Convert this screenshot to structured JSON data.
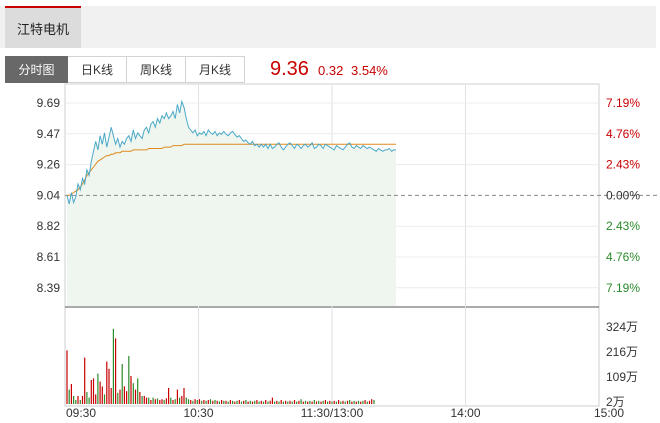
{
  "header": {
    "stock_name": "江特电机"
  },
  "tabs": [
    {
      "label": "分时图",
      "active": true
    },
    {
      "label": "日K线",
      "active": false
    },
    {
      "label": "周K线",
      "active": false
    },
    {
      "label": "月K线",
      "active": false
    }
  ],
  "quote": {
    "price": "9.36",
    "change": "0.32",
    "change_pct": "3.54%"
  },
  "colors": {
    "up": "#c80000",
    "down": "#2b8a2b",
    "price_line": "#4ba8c8",
    "avg_line": "#e08a1e",
    "fill": "#eef6ef"
  },
  "chart_data": {
    "type": "line",
    "prev_close": 9.04,
    "y_ticks": [
      "9.69",
      "9.47",
      "9.26",
      "9.04",
      "8.82",
      "8.61",
      "8.39"
    ],
    "pct_ticks": [
      "7.19%",
      "4.76%",
      "2.43%",
      "0.00%",
      "2.43%",
      "4.76%",
      "7.19%"
    ],
    "volume_ticks": [
      "324万",
      "216万",
      "109万",
      "2万"
    ],
    "x_ticks": [
      "09:30",
      "10:30",
      "11:30/13:00",
      "14:00",
      "15:00"
    ],
    "series": [
      {
        "values": [
          9.04,
          8.98,
          9.06,
          8.99,
          9.03,
          9.12,
          9.08,
          9.16,
          9.12,
          9.22,
          9.18,
          9.28,
          9.35,
          9.42,
          9.36,
          9.46,
          9.4,
          9.48,
          9.38,
          9.45,
          9.52,
          9.46,
          9.4,
          9.44,
          9.38,
          9.42,
          9.4,
          9.44,
          9.46,
          9.42,
          9.5,
          9.44,
          9.48,
          9.46,
          9.44,
          9.5,
          9.52,
          9.48,
          9.54,
          9.56,
          9.52,
          9.58,
          9.55,
          9.6,
          9.58,
          9.62,
          9.58,
          9.6,
          9.63,
          9.58,
          9.68,
          9.62,
          9.7,
          9.66,
          9.58,
          9.52,
          9.5,
          9.48,
          9.5,
          9.46,
          9.48,
          9.47,
          9.49,
          9.46,
          9.5,
          9.48,
          9.47,
          9.49,
          9.46,
          9.48,
          9.47,
          9.49,
          9.47,
          9.46,
          9.48,
          9.49,
          9.47,
          9.45,
          9.46,
          9.44,
          9.42,
          9.43,
          9.41,
          9.4,
          9.42,
          9.39,
          9.4,
          9.38,
          9.4,
          9.38,
          9.4,
          9.37,
          9.4,
          9.37,
          9.38,
          9.4,
          9.41,
          9.38,
          9.36,
          9.38,
          9.4,
          9.41,
          9.39,
          9.37,
          9.4,
          9.39,
          9.37,
          9.39,
          9.4,
          9.38,
          9.39,
          9.41,
          9.37,
          9.38,
          9.4,
          9.39,
          9.37,
          9.4,
          9.39,
          9.38,
          9.37,
          9.36,
          9.39,
          9.38,
          9.37,
          9.36,
          9.38,
          9.4,
          9.41,
          9.38,
          9.37,
          9.39,
          9.38,
          9.37,
          9.39,
          9.38,
          9.37,
          9.38,
          9.37,
          9.36,
          9.35,
          9.37,
          9.36,
          9.35,
          9.36,
          9.36,
          9.37,
          9.35,
          9.36,
          9.36
        ]
      },
      {
        "values": [
          9.04,
          9.04,
          9.05,
          9.06,
          9.07,
          9.08,
          9.1,
          9.12,
          9.15,
          9.18,
          9.2,
          9.22,
          9.24,
          9.26,
          9.28,
          9.29,
          9.3,
          9.31,
          9.32,
          9.32,
          9.33,
          9.33,
          9.34,
          9.34,
          9.34,
          9.35,
          9.35,
          9.35,
          9.35,
          9.35,
          9.36,
          9.36,
          9.36,
          9.36,
          9.36,
          9.36,
          9.36,
          9.37,
          9.37,
          9.37,
          9.37,
          9.37,
          9.37,
          9.37,
          9.38,
          9.38,
          9.38,
          9.38,
          9.39,
          9.39,
          9.39,
          9.39,
          9.39,
          9.4,
          9.4,
          9.4,
          9.4,
          9.4,
          9.4,
          9.4,
          9.4,
          9.4,
          9.4,
          9.4,
          9.4,
          9.4,
          9.4,
          9.4,
          9.4,
          9.4,
          9.4,
          9.4,
          9.4,
          9.4,
          9.4,
          9.4,
          9.4,
          9.4,
          9.4,
          9.4,
          9.4,
          9.4,
          9.4,
          9.4,
          9.4,
          9.4,
          9.4,
          9.4,
          9.4,
          9.4,
          9.4,
          9.4,
          9.4,
          9.4,
          9.4,
          9.4,
          9.4,
          9.4,
          9.4,
          9.4,
          9.4,
          9.4,
          9.4,
          9.4,
          9.4,
          9.4,
          9.4,
          9.4,
          9.4,
          9.4,
          9.4,
          9.4,
          9.4,
          9.4,
          9.4,
          9.4,
          9.4,
          9.4,
          9.4,
          9.4,
          9.4,
          9.4,
          9.4,
          9.4,
          9.4,
          9.4,
          9.4,
          9.4,
          9.4,
          9.4,
          9.4,
          9.4,
          9.4,
          9.4,
          9.4,
          9.4,
          9.4,
          9.4,
          9.4,
          9.4,
          9.4,
          9.4,
          9.4,
          9.4,
          9.4,
          9.4,
          9.4,
          9.4,
          9.4,
          9.4
        ]
      }
    ],
    "volume": [
      {
        "v": 0.67,
        "up": true
      },
      {
        "v": 0.18,
        "up": false
      },
      {
        "v": 0.25,
        "up": true
      },
      {
        "v": 0.1,
        "up": false
      },
      {
        "v": 0.05,
        "up": false
      },
      {
        "v": 0.1,
        "up": true
      },
      {
        "v": 0.05,
        "up": false
      },
      {
        "v": 0.1,
        "up": true
      },
      {
        "v": 0.58,
        "up": true
      },
      {
        "v": 0.15,
        "up": false
      },
      {
        "v": 0.08,
        "up": false
      },
      {
        "v": 0.3,
        "up": true
      },
      {
        "v": 0.32,
        "up": true
      },
      {
        "v": 0.12,
        "up": true
      },
      {
        "v": 0.38,
        "up": false
      },
      {
        "v": 0.28,
        "up": true
      },
      {
        "v": 0.22,
        "up": true
      },
      {
        "v": 0.12,
        "up": false
      },
      {
        "v": 0.53,
        "up": true
      },
      {
        "v": 0.44,
        "up": true
      },
      {
        "v": 0.2,
        "up": true
      },
      {
        "v": 0.94,
        "up": false
      },
      {
        "v": 0.82,
        "up": true
      },
      {
        "v": 0.14,
        "up": false
      },
      {
        "v": 0.18,
        "up": true
      },
      {
        "v": 0.5,
        "up": false
      },
      {
        "v": 0.22,
        "up": true
      },
      {
        "v": 0.16,
        "up": true
      },
      {
        "v": 0.6,
        "up": false
      },
      {
        "v": 0.35,
        "up": true
      },
      {
        "v": 0.26,
        "up": false
      },
      {
        "v": 0.18,
        "up": true
      },
      {
        "v": 0.32,
        "up": false
      },
      {
        "v": 0.15,
        "up": true
      },
      {
        "v": 0.1,
        "up": false
      },
      {
        "v": 0.1,
        "up": true
      },
      {
        "v": 0.08,
        "up": true
      },
      {
        "v": 0.08,
        "up": false
      },
      {
        "v": 0.05,
        "up": true
      },
      {
        "v": 0.08,
        "up": false
      },
      {
        "v": 0.06,
        "up": true
      },
      {
        "v": 0.07,
        "up": false
      },
      {
        "v": 0.05,
        "up": true
      },
      {
        "v": 0.06,
        "up": true
      },
      {
        "v": 0.05,
        "up": false
      },
      {
        "v": 0.07,
        "up": true
      },
      {
        "v": 0.2,
        "up": true
      },
      {
        "v": 0.08,
        "up": false
      },
      {
        "v": 0.05,
        "up": true
      },
      {
        "v": 0.06,
        "up": false
      },
      {
        "v": 0.18,
        "up": true
      },
      {
        "v": 0.08,
        "up": false
      },
      {
        "v": 0.1,
        "up": true
      },
      {
        "v": 0.2,
        "up": true
      },
      {
        "v": 0.08,
        "up": false
      },
      {
        "v": 0.06,
        "up": false
      },
      {
        "v": 0.05,
        "up": true
      },
      {
        "v": 0.04,
        "up": false
      },
      {
        "v": 0.06,
        "up": true
      },
      {
        "v": 0.05,
        "up": false
      },
      {
        "v": 0.06,
        "up": true
      },
      {
        "v": 0.04,
        "up": false
      },
      {
        "v": 0.05,
        "up": true
      },
      {
        "v": 0.04,
        "up": false
      },
      {
        "v": 0.05,
        "up": true
      },
      {
        "v": 0.06,
        "up": false
      },
      {
        "v": 0.04,
        "up": true
      },
      {
        "v": 0.05,
        "up": false
      },
      {
        "v": 0.04,
        "up": true
      },
      {
        "v": 0.03,
        "up": false
      },
      {
        "v": 0.05,
        "up": true
      },
      {
        "v": 0.04,
        "up": false
      },
      {
        "v": 0.04,
        "up": true
      },
      {
        "v": 0.03,
        "up": false
      },
      {
        "v": 0.05,
        "up": true
      },
      {
        "v": 0.04,
        "up": false
      },
      {
        "v": 0.03,
        "up": true
      },
      {
        "v": 0.04,
        "up": false
      },
      {
        "v": 0.05,
        "up": true
      },
      {
        "v": 0.03,
        "up": false
      },
      {
        "v": 0.04,
        "up": true
      },
      {
        "v": 0.05,
        "up": false
      },
      {
        "v": 0.03,
        "up": true
      },
      {
        "v": 0.04,
        "up": false
      },
      {
        "v": 0.03,
        "up": true
      },
      {
        "v": 0.04,
        "up": false
      },
      {
        "v": 0.05,
        "up": true
      },
      {
        "v": 0.03,
        "up": false
      },
      {
        "v": 0.04,
        "up": true
      },
      {
        "v": 0.03,
        "up": false
      },
      {
        "v": 0.05,
        "up": true
      },
      {
        "v": 0.03,
        "up": false
      },
      {
        "v": 0.04,
        "up": true
      },
      {
        "v": 0.08,
        "up": true
      },
      {
        "v": 0.03,
        "up": false
      },
      {
        "v": 0.04,
        "up": true
      },
      {
        "v": 0.03,
        "up": false
      },
      {
        "v": 0.05,
        "up": true
      },
      {
        "v": 0.03,
        "up": false
      },
      {
        "v": 0.04,
        "up": true
      },
      {
        "v": 0.03,
        "up": false
      },
      {
        "v": 0.04,
        "up": true
      },
      {
        "v": 0.03,
        "up": false
      },
      {
        "v": 0.05,
        "up": true
      },
      {
        "v": 0.03,
        "up": false
      },
      {
        "v": 0.04,
        "up": true
      },
      {
        "v": 0.06,
        "up": false
      },
      {
        "v": 0.03,
        "up": true
      },
      {
        "v": 0.04,
        "up": false
      },
      {
        "v": 0.03,
        "up": true
      },
      {
        "v": 0.04,
        "up": false
      },
      {
        "v": 0.03,
        "up": true
      },
      {
        "v": 0.05,
        "up": false
      },
      {
        "v": 0.03,
        "up": true
      },
      {
        "v": 0.04,
        "up": false
      },
      {
        "v": 0.03,
        "up": true
      },
      {
        "v": 0.04,
        "up": false
      },
      {
        "v": 0.05,
        "up": true
      },
      {
        "v": 0.03,
        "up": false
      },
      {
        "v": 0.04,
        "up": true
      },
      {
        "v": 0.03,
        "up": false
      },
      {
        "v": 0.04,
        "up": true
      },
      {
        "v": 0.03,
        "up": false
      },
      {
        "v": 0.05,
        "up": true
      },
      {
        "v": 0.03,
        "up": false
      },
      {
        "v": 0.04,
        "up": true
      },
      {
        "v": 0.03,
        "up": false
      },
      {
        "v": 0.04,
        "up": true
      },
      {
        "v": 0.05,
        "up": false
      },
      {
        "v": 0.03,
        "up": true
      },
      {
        "v": 0.04,
        "up": false
      },
      {
        "v": 0.03,
        "up": true
      },
      {
        "v": 0.04,
        "up": false
      },
      {
        "v": 0.03,
        "up": true
      },
      {
        "v": 0.04,
        "up": false
      },
      {
        "v": 0.05,
        "up": true
      },
      {
        "v": 0.03,
        "up": false
      },
      {
        "v": 0.04,
        "up": true
      },
      {
        "v": 0.06,
        "up": true
      },
      {
        "v": 0.05,
        "up": false
      }
    ]
  }
}
